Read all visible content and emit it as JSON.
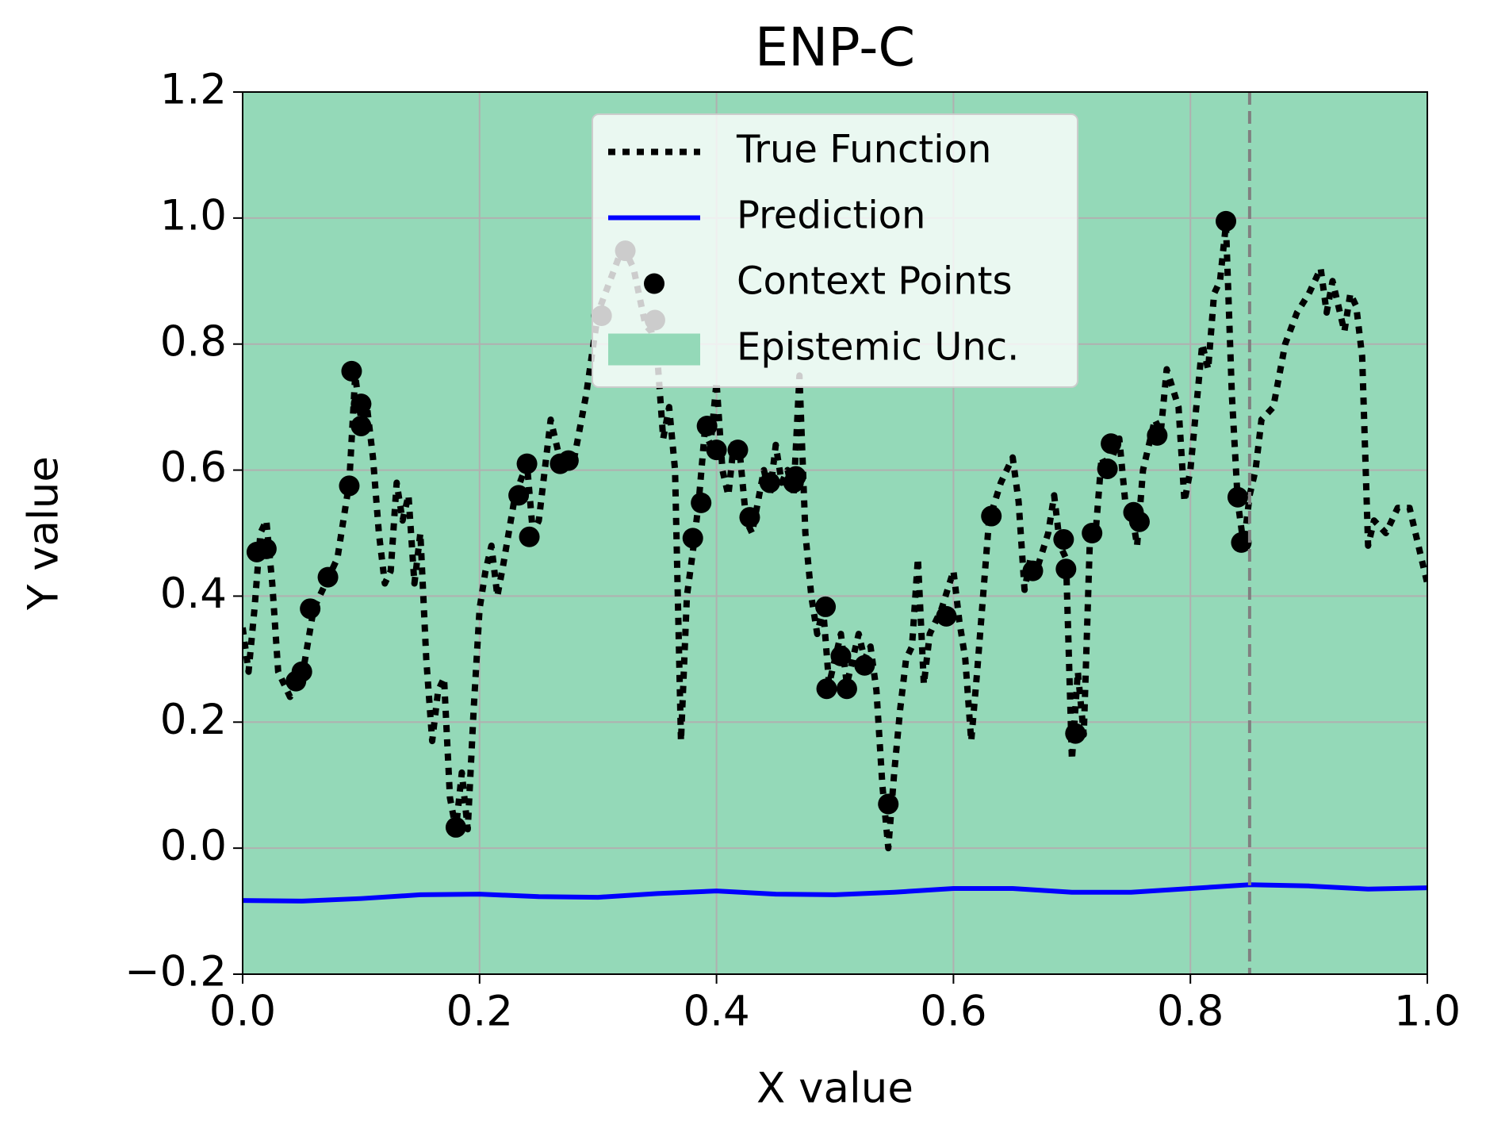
{
  "chart_data": {
    "type": "line",
    "title": "ENP-C",
    "xlabel": "X value",
    "ylabel": "Y value",
    "xlim": [
      0,
      1
    ],
    "ylim": [
      -0.2,
      1.2
    ],
    "xticks": [
      {
        "value": 0,
        "label": "0.0"
      },
      0.2,
      0.4,
      0.6,
      0.8,
      {
        "value": 1,
        "label": "1.0"
      }
    ],
    "yticks": [
      {
        "value": -0.2,
        "label": "−0.2"
      },
      {
        "value": 0,
        "label": "0.0"
      },
      0.2,
      0.4,
      0.6,
      0.8,
      {
        "value": 1,
        "label": "1.0"
      },
      1.2
    ],
    "grid": true,
    "legend": "upper center",
    "vline": {
      "x": 0.85,
      "color": "#808080"
    },
    "series": [
      {
        "name": "True Function",
        "kind": "line",
        "dash": "dotted",
        "color": "#000000",
        "x": [
          0,
          0.005,
          0.01,
          0.015,
          0.02,
          0.025,
          0.03,
          0.04,
          0.05,
          0.06,
          0.07,
          0.08,
          0.09,
          0.095,
          0.1,
          0.105,
          0.11,
          0.115,
          0.12,
          0.125,
          0.13,
          0.135,
          0.14,
          0.145,
          0.15,
          0.155,
          0.16,
          0.165,
          0.17,
          0.175,
          0.18,
          0.185,
          0.19,
          0.195,
          0.2,
          0.205,
          0.21,
          0.215,
          0.22,
          0.23,
          0.24,
          0.245,
          0.25,
          0.26,
          0.27,
          0.28,
          0.29,
          0.3,
          0.31,
          0.32,
          0.325,
          0.33,
          0.34,
          0.345,
          0.35,
          0.355,
          0.36,
          0.365,
          0.37,
          0.375,
          0.38,
          0.385,
          0.39,
          0.395,
          0.4,
          0.405,
          0.41,
          0.415,
          0.42,
          0.425,
          0.43,
          0.435,
          0.44,
          0.445,
          0.45,
          0.455,
          0.46,
          0.465,
          0.47,
          0.475,
          0.48,
          0.485,
          0.49,
          0.495,
          0.5,
          0.505,
          0.51,
          0.515,
          0.52,
          0.525,
          0.53,
          0.535,
          0.54,
          0.545,
          0.55,
          0.555,
          0.56,
          0.565,
          0.57,
          0.575,
          0.58,
          0.59,
          0.6,
          0.605,
          0.61,
          0.615,
          0.62,
          0.63,
          0.64,
          0.65,
          0.655,
          0.66,
          0.665,
          0.67,
          0.68,
          0.685,
          0.69,
          0.695,
          0.7,
          0.705,
          0.71,
          0.715,
          0.72,
          0.725,
          0.73,
          0.74,
          0.745,
          0.75,
          0.755,
          0.76,
          0.77,
          0.775,
          0.78,
          0.79,
          0.795,
          0.8,
          0.81,
          0.815,
          0.82,
          0.825,
          0.83,
          0.835,
          0.84,
          0.845,
          0.85,
          0.855,
          0.86,
          0.87,
          0.88,
          0.89,
          0.9,
          0.91,
          0.915,
          0.92,
          0.93,
          0.935,
          0.94,
          0.945,
          0.95,
          0.955,
          0.965,
          0.975,
          0.985,
          0.99,
          1.0
        ],
        "values": [
          0.35,
          0.28,
          0.38,
          0.5,
          0.52,
          0.42,
          0.28,
          0.24,
          0.27,
          0.38,
          0.42,
          0.46,
          0.58,
          0.75,
          0.68,
          0.7,
          0.62,
          0.5,
          0.42,
          0.44,
          0.58,
          0.52,
          0.56,
          0.42,
          0.5,
          0.3,
          0.17,
          0.25,
          0.27,
          0.08,
          0.03,
          0.12,
          0.03,
          0.22,
          0.38,
          0.44,
          0.48,
          0.4,
          0.45,
          0.56,
          0.61,
          0.5,
          0.52,
          0.68,
          0.6,
          0.62,
          0.72,
          0.85,
          0.9,
          0.95,
          0.94,
          0.92,
          0.83,
          0.82,
          0.78,
          0.65,
          0.7,
          0.6,
          0.17,
          0.4,
          0.47,
          0.55,
          0.66,
          0.64,
          0.74,
          0.6,
          0.56,
          0.65,
          0.62,
          0.52,
          0.5,
          0.55,
          0.6,
          0.56,
          0.64,
          0.58,
          0.6,
          0.56,
          0.75,
          0.5,
          0.4,
          0.34,
          0.38,
          0.26,
          0.3,
          0.34,
          0.26,
          0.3,
          0.34,
          0.3,
          0.32,
          0.25,
          0.1,
          0,
          0.12,
          0.22,
          0.3,
          0.32,
          0.46,
          0.26,
          0.34,
          0.38,
          0.44,
          0.36,
          0.3,
          0.17,
          0.28,
          0.52,
          0.58,
          0.62,
          0.55,
          0.41,
          0.46,
          0.44,
          0.5,
          0.56,
          0.48,
          0.46,
          0.14,
          0.28,
          0.18,
          0.48,
          0.5,
          0.62,
          0.6,
          0.65,
          0.55,
          0.54,
          0.48,
          0.6,
          0.68,
          0.66,
          0.76,
          0.7,
          0.55,
          0.6,
          0.8,
          0.76,
          0.88,
          0.9,
          0.99,
          0.72,
          0.55,
          0.48,
          0.56,
          0.6,
          0.68,
          0.7,
          0.8,
          0.85,
          0.88,
          0.92,
          0.85,
          0.9,
          0.82,
          0.88,
          0.86,
          0.78,
          0.48,
          0.52,
          0.5,
          0.54,
          0.54,
          0.5,
          0.42
        ]
      },
      {
        "name": "Prediction",
        "kind": "line",
        "dash": "solid",
        "color": "#0000ff",
        "x": [
          0,
          0.05,
          0.1,
          0.15,
          0.2,
          0.25,
          0.3,
          0.35,
          0.4,
          0.45,
          0.5,
          0.55,
          0.6,
          0.65,
          0.7,
          0.75,
          0.8,
          0.85,
          0.9,
          0.95,
          1.0
        ],
        "values": [
          -0.083,
          -0.084,
          -0.08,
          -0.074,
          -0.073,
          -0.077,
          -0.078,
          -0.072,
          -0.068,
          -0.073,
          -0.074,
          -0.07,
          -0.064,
          -0.064,
          -0.07,
          -0.07,
          -0.064,
          -0.058,
          -0.06,
          -0.065,
          -0.063
        ]
      },
      {
        "name": "Context Points",
        "kind": "scatter",
        "color": "#000000",
        "x": [
          0.012,
          0.02,
          0.045,
          0.05,
          0.057,
          0.072,
          0.09,
          0.092,
          0.1,
          0.1,
          0.18,
          0.233,
          0.24,
          0.242,
          0.268,
          0.275,
          0.303,
          0.323,
          0.348,
          0.38,
          0.387,
          0.392,
          0.4,
          0.418,
          0.428,
          0.445,
          0.465,
          0.467,
          0.492,
          0.493,
          0.505,
          0.51,
          0.525,
          0.545,
          0.594,
          0.632,
          0.667,
          0.693,
          0.695,
          0.703,
          0.717,
          0.73,
          0.733,
          0.752,
          0.757,
          0.772,
          0.83,
          0.84,
          0.843
        ],
        "values": [
          0.47,
          0.475,
          0.265,
          0.28,
          0.38,
          0.43,
          0.575,
          0.757,
          0.705,
          0.67,
          0.033,
          0.56,
          0.61,
          0.494,
          0.61,
          0.615,
          0.845,
          0.948,
          0.838,
          0.492,
          0.548,
          0.67,
          0.632,
          0.632,
          0.525,
          0.58,
          0.58,
          0.59,
          0.383,
          0.253,
          0.305,
          0.253,
          0.29,
          0.07,
          0.368,
          0.527,
          0.44,
          0.49,
          0.443,
          0.182,
          0.5,
          0.602,
          0.642,
          0.533,
          0.518,
          0.655,
          0.995,
          0.557,
          0.485
        ]
      },
      {
        "name": "Epistemic Unc.",
        "kind": "band",
        "color": "#94d9b8",
        "x": [
          0,
          1
        ],
        "lower": [
          -0.2,
          -0.2
        ],
        "upper": [
          1.2,
          1.2
        ]
      }
    ]
  }
}
